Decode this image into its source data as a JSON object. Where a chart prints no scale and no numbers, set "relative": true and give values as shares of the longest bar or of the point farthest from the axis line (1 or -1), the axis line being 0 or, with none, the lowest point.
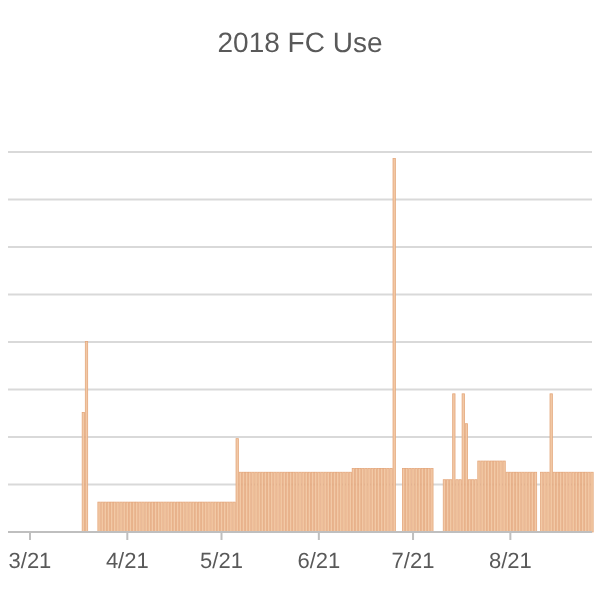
{
  "chart_data": {
    "type": "bar",
    "title": "2018 FC Use",
    "relative": true,
    "grid": "y",
    "color": "#f2c9a6",
    "xlim": [
      "2018-03-14",
      "2018-09-16"
    ],
    "xticks": [
      {
        "value": "2018-03-21",
        "label": "3/21"
      },
      {
        "value": "2018-04-21",
        "label": "4/21"
      },
      {
        "value": "2018-05-21",
        "label": "5/21"
      },
      {
        "value": "2018-06-21",
        "label": "6/21"
      },
      {
        "value": "2018-07-21",
        "label": "7/21"
      },
      {
        "value": "2018-08-21",
        "label": "8/21"
      }
    ],
    "x": [
      "2018-04-07",
      "2018-04-08",
      "2018-04-12",
      "2018-04-13",
      "2018-04-14",
      "2018-04-15",
      "2018-04-16",
      "2018-04-17",
      "2018-04-18",
      "2018-04-19",
      "2018-04-20",
      "2018-04-21",
      "2018-04-22",
      "2018-04-23",
      "2018-04-24",
      "2018-04-25",
      "2018-04-26",
      "2018-04-27",
      "2018-04-28",
      "2018-04-29",
      "2018-04-30",
      "2018-05-01",
      "2018-05-02",
      "2018-05-03",
      "2018-05-04",
      "2018-05-05",
      "2018-05-06",
      "2018-05-07",
      "2018-05-08",
      "2018-05-09",
      "2018-05-10",
      "2018-05-11",
      "2018-05-12",
      "2018-05-13",
      "2018-05-14",
      "2018-05-15",
      "2018-05-16",
      "2018-05-17",
      "2018-05-18",
      "2018-05-19",
      "2018-05-20",
      "2018-05-21",
      "2018-05-22",
      "2018-05-23",
      "2018-05-24",
      "2018-05-25",
      "2018-05-26",
      "2018-05-27",
      "2018-05-28",
      "2018-05-29",
      "2018-05-30",
      "2018-05-31",
      "2018-06-01",
      "2018-06-02",
      "2018-06-03",
      "2018-06-04",
      "2018-06-05",
      "2018-06-06",
      "2018-06-07",
      "2018-06-08",
      "2018-06-09",
      "2018-06-10",
      "2018-06-11",
      "2018-06-12",
      "2018-06-13",
      "2018-06-14",
      "2018-06-15",
      "2018-06-16",
      "2018-06-17",
      "2018-06-18",
      "2018-06-19",
      "2018-06-20",
      "2018-06-21",
      "2018-06-22",
      "2018-06-23",
      "2018-06-24",
      "2018-06-25",
      "2018-06-26",
      "2018-06-27",
      "2018-06-28",
      "2018-06-29",
      "2018-06-30",
      "2018-07-01",
      "2018-07-02",
      "2018-07-03",
      "2018-07-04",
      "2018-07-05",
      "2018-07-06",
      "2018-07-07",
      "2018-07-08",
      "2018-07-09",
      "2018-07-10",
      "2018-07-11",
      "2018-07-12",
      "2018-07-13",
      "2018-07-14",
      "2018-07-15",
      "2018-07-18",
      "2018-07-19",
      "2018-07-20",
      "2018-07-21",
      "2018-07-22",
      "2018-07-23",
      "2018-07-24",
      "2018-07-25",
      "2018-07-26",
      "2018-07-27",
      "2018-07-31",
      "2018-08-01",
      "2018-08-02",
      "2018-08-03",
      "2018-08-04",
      "2018-08-05",
      "2018-08-06",
      "2018-08-07",
      "2018-08-08",
      "2018-08-09",
      "2018-08-10",
      "2018-08-11",
      "2018-08-12",
      "2018-08-13",
      "2018-08-14",
      "2018-08-15",
      "2018-08-16",
      "2018-08-17",
      "2018-08-18",
      "2018-08-19",
      "2018-08-20",
      "2018-08-21",
      "2018-08-22",
      "2018-08-23",
      "2018-08-24",
      "2018-08-25",
      "2018-08-26",
      "2018-08-27",
      "2018-08-28",
      "2018-08-29",
      "2018-08-31",
      "2018-09-01",
      "2018-09-02",
      "2018-09-03",
      "2018-09-04",
      "2018-09-05",
      "2018-09-06",
      "2018-09-07",
      "2018-09-08",
      "2018-09-09",
      "2018-09-10",
      "2018-09-11",
      "2018-09-12",
      "2018-09-13",
      "2018-09-14",
      "2018-09-15",
      "2018-09-16"
    ],
    "values": [
      0.32,
      0.51,
      0.08,
      0.08,
      0.08,
      0.08,
      0.08,
      0.08,
      0.08,
      0.08,
      0.08,
      0.08,
      0.08,
      0.08,
      0.08,
      0.08,
      0.08,
      0.08,
      0.08,
      0.08,
      0.08,
      0.08,
      0.08,
      0.08,
      0.08,
      0.08,
      0.08,
      0.08,
      0.08,
      0.08,
      0.08,
      0.08,
      0.08,
      0.08,
      0.08,
      0.08,
      0.08,
      0.08,
      0.08,
      0.08,
      0.08,
      0.08,
      0.08,
      0.08,
      0.08,
      0.08,
      0.25,
      0.16,
      0.16,
      0.16,
      0.16,
      0.16,
      0.16,
      0.16,
      0.16,
      0.16,
      0.16,
      0.16,
      0.16,
      0.16,
      0.16,
      0.16,
      0.16,
      0.16,
      0.16,
      0.16,
      0.16,
      0.16,
      0.16,
      0.16,
      0.16,
      0.16,
      0.16,
      0.16,
      0.16,
      0.16,
      0.16,
      0.16,
      0.16,
      0.16,
      0.16,
      0.16,
      0.16,
      0.17,
      0.17,
      0.17,
      0.17,
      0.17,
      0.17,
      0.17,
      0.17,
      0.17,
      0.17,
      0.17,
      0.17,
      0.17,
      1,
      0.17,
      0.17,
      0.17,
      0.17,
      0.17,
      0.17,
      0.17,
      0.17,
      0.17,
      0.17,
      0.14,
      0.14,
      0.14,
      0.37,
      0.14,
      0.14,
      0.37,
      0.29,
      0.14,
      0.14,
      0.14,
      0.19,
      0.19,
      0.19,
      0.19,
      0.19,
      0.19,
      0.19,
      0.19,
      0.19,
      0.16,
      0.16,
      0.16,
      0.16,
      0.16,
      0.16,
      0.16,
      0.16,
      0.16,
      0.16,
      0.16,
      0.16,
      0.16,
      0.37,
      0.16,
      0.16,
      0.16,
      0.16,
      0.16,
      0.16,
      0.16,
      0.16,
      0.16,
      0.16,
      0.16,
      0.16,
      0.16
    ]
  }
}
